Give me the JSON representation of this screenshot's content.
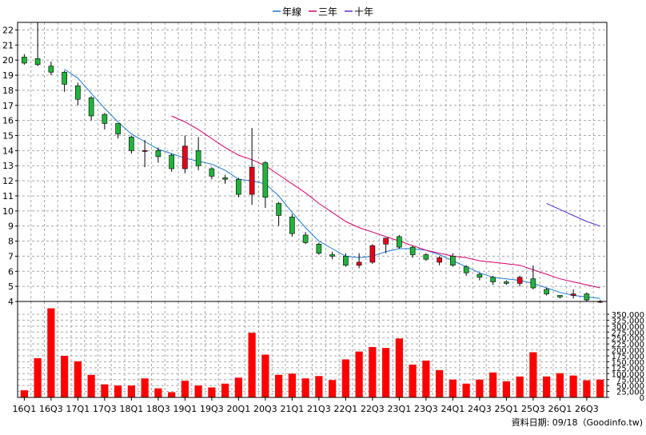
{
  "chart_data": {
    "type": "candlestick",
    "colors": {
      "up": "#e8001c",
      "down": "#21b33d",
      "volume": "#ff0000",
      "line_year": "#1c7ad4",
      "line_three": "#d6006b",
      "line_ten": "#5a2ad6",
      "grid": "#a8a8a8"
    },
    "legend": [
      {
        "key": "year",
        "label": "年線",
        "color": "#1c7ad4"
      },
      {
        "key": "three",
        "label": "三年",
        "color": "#d6006b"
      },
      {
        "key": "ten",
        "label": "十年",
        "color": "#5a2ad6"
      }
    ],
    "price_ylim": [
      4,
      22.5
    ],
    "price_yticks": [
      4,
      5,
      6,
      7,
      8,
      9,
      10,
      11,
      12,
      13,
      14,
      15,
      16,
      17,
      18,
      19,
      20,
      21,
      22
    ],
    "volume_ylim": [
      0,
      350000
    ],
    "volume_yticks": [
      0,
      25000,
      50000,
      75000,
      100000,
      125000,
      150000,
      175000,
      200000,
      225000,
      250000,
      275000,
      300000,
      325000,
      350000
    ],
    "volume_ytick_labels": [
      "0",
      "25,000",
      "50,000",
      "75,000",
      "100,000",
      "125,000",
      "150,000",
      "175,000",
      "200,000",
      "225,000",
      "250,000",
      "275,000",
      "300,000",
      "325,000",
      "350,000"
    ],
    "x_tick_labels": [
      {
        "i": 0,
        "label": "16Q1"
      },
      {
        "i": 2,
        "label": "16Q3"
      },
      {
        "i": 4,
        "label": "17Q1"
      },
      {
        "i": 6,
        "label": "17Q3"
      },
      {
        "i": 8,
        "label": "18Q1"
      },
      {
        "i": 10,
        "label": "18Q3"
      },
      {
        "i": 12,
        "label": "19Q1"
      },
      {
        "i": 14,
        "label": "19Q3"
      },
      {
        "i": 16,
        "label": "20Q1"
      },
      {
        "i": 18,
        "label": "20Q3"
      },
      {
        "i": 20,
        "label": "21Q1"
      },
      {
        "i": 22,
        "label": "21Q3"
      },
      {
        "i": 24,
        "label": "22Q1"
      },
      {
        "i": 26,
        "label": "22Q3"
      },
      {
        "i": 28,
        "label": "23Q1"
      },
      {
        "i": 30,
        "label": "23Q3"
      },
      {
        "i": 32,
        "label": "24Q1"
      },
      {
        "i": 34,
        "label": "24Q3"
      },
      {
        "i": 36,
        "label": "25Q1"
      },
      {
        "i": 38,
        "label": "25Q3"
      },
      {
        "i": 40,
        "label": "26Q1"
      },
      {
        "i": 42,
        "label": "26Q3"
      }
    ],
    "candles": [
      {
        "o": 20.2,
        "h": 20.4,
        "l": 19.7,
        "c": 19.8
      },
      {
        "o": 20.1,
        "h": 22.5,
        "l": 19.6,
        "c": 19.7
      },
      {
        "o": 19.6,
        "h": 19.9,
        "l": 19.0,
        "c": 19.2
      },
      {
        "o": 19.2,
        "h": 19.3,
        "l": 17.9,
        "c": 18.4
      },
      {
        "o": 18.3,
        "h": 18.5,
        "l": 17.0,
        "c": 17.4
      },
      {
        "o": 17.5,
        "h": 17.6,
        "l": 16.0,
        "c": 16.3
      },
      {
        "o": 16.4,
        "h": 16.5,
        "l": 15.4,
        "c": 15.8
      },
      {
        "o": 15.8,
        "h": 15.8,
        "l": 14.8,
        "c": 15.1
      },
      {
        "o": 14.9,
        "h": 15.0,
        "l": 13.8,
        "c": 14.0
      },
      {
        "o": 14.0,
        "h": 14.7,
        "l": 12.9,
        "c": 14.0
      },
      {
        "o": 14.0,
        "h": 14.2,
        "l": 13.2,
        "c": 13.6
      },
      {
        "o": 13.7,
        "h": 13.8,
        "l": 12.6,
        "c": 12.8
      },
      {
        "o": 12.8,
        "h": 15.0,
        "l": 12.5,
        "c": 14.3
      },
      {
        "o": 14.0,
        "h": 14.9,
        "l": 12.7,
        "c": 13.0
      },
      {
        "o": 12.8,
        "h": 12.9,
        "l": 12.1,
        "c": 12.3
      },
      {
        "o": 12.2,
        "h": 12.4,
        "l": 11.8,
        "c": 12.1
      },
      {
        "o": 12.1,
        "h": 12.2,
        "l": 10.9,
        "c": 11.1
      },
      {
        "o": 11.1,
        "h": 15.5,
        "l": 10.4,
        "c": 12.9
      },
      {
        "o": 13.2,
        "h": 13.3,
        "l": 10.2,
        "c": 10.9
      },
      {
        "o": 10.5,
        "h": 10.6,
        "l": 9.0,
        "c": 9.7
      },
      {
        "o": 9.6,
        "h": 9.8,
        "l": 8.3,
        "c": 8.5
      },
      {
        "o": 8.4,
        "h": 8.6,
        "l": 7.8,
        "c": 7.9
      },
      {
        "o": 7.8,
        "h": 7.9,
        "l": 7.1,
        "c": 7.2
      },
      {
        "o": 7.1,
        "h": 7.3,
        "l": 6.8,
        "c": 7.0
      },
      {
        "o": 7.0,
        "h": 7.2,
        "l": 6.3,
        "c": 6.4
      },
      {
        "o": 6.4,
        "h": 7.2,
        "l": 6.2,
        "c": 6.6
      },
      {
        "o": 6.6,
        "h": 7.8,
        "l": 6.5,
        "c": 7.7
      },
      {
        "o": 7.8,
        "h": 8.2,
        "l": 7.2,
        "c": 8.2
      },
      {
        "o": 8.3,
        "h": 8.4,
        "l": 7.5,
        "c": 7.6
      },
      {
        "o": 7.6,
        "h": 7.7,
        "l": 6.9,
        "c": 7.1
      },
      {
        "o": 7.1,
        "h": 7.2,
        "l": 6.7,
        "c": 6.8
      },
      {
        "o": 6.6,
        "h": 7.0,
        "l": 6.4,
        "c": 6.9
      },
      {
        "o": 7.0,
        "h": 7.2,
        "l": 6.3,
        "c": 6.4
      },
      {
        "o": 6.3,
        "h": 6.4,
        "l": 5.7,
        "c": 5.9
      },
      {
        "o": 5.8,
        "h": 5.9,
        "l": 5.4,
        "c": 5.6
      },
      {
        "o": 5.6,
        "h": 5.7,
        "l": 5.1,
        "c": 5.3
      },
      {
        "o": 5.3,
        "h": 5.4,
        "l": 5.1,
        "c": 5.2
      },
      {
        "o": 5.2,
        "h": 5.7,
        "l": 5.0,
        "c": 5.6
      },
      {
        "o": 5.5,
        "h": 6.4,
        "l": 4.8,
        "c": 4.9
      },
      {
        "o": 4.8,
        "h": 4.9,
        "l": 4.4,
        "c": 4.5
      },
      {
        "o": 4.4,
        "h": 4.4,
        "l": 4.2,
        "c": 4.3
      },
      {
        "o": 4.4,
        "h": 4.8,
        "l": 4.2,
        "c": 4.5
      },
      {
        "o": 4.5,
        "h": 4.6,
        "l": 4.0,
        "c": 4.1
      },
      {
        "o": 4.0,
        "h": 4.1,
        "l": 3.9,
        "c": 4.0
      }
    ],
    "volumes": [
      30000,
      165000,
      375000,
      175000,
      152000,
      95000,
      55000,
      50000,
      50000,
      80000,
      38000,
      22000,
      70000,
      50000,
      42000,
      58000,
      83000,
      272000,
      180000,
      95000,
      100000,
      80000,
      90000,
      73000,
      160000,
      193000,
      212000,
      208000,
      248000,
      138000,
      155000,
      115000,
      75000,
      58000,
      75000,
      105000,
      68000,
      88000,
      190000,
      88000,
      102000,
      92000,
      72000,
      75000
    ],
    "line_year": [
      {
        "i": 3,
        "v": 19.4
      },
      {
        "i": 4,
        "v": 18.8
      },
      {
        "i": 5,
        "v": 17.8
      },
      {
        "i": 6,
        "v": 16.8
      },
      {
        "i": 7,
        "v": 15.9
      },
      {
        "i": 8,
        "v": 15.1
      },
      {
        "i": 9,
        "v": 14.6
      },
      {
        "i": 10,
        "v": 14.1
      },
      {
        "i": 11,
        "v": 13.8
      },
      {
        "i": 12,
        "v": 13.5
      },
      {
        "i": 13,
        "v": 13.3
      },
      {
        "i": 14,
        "v": 13.1
      },
      {
        "i": 15,
        "v": 12.7
      },
      {
        "i": 16,
        "v": 12.1
      },
      {
        "i": 17,
        "v": 12.0
      },
      {
        "i": 18,
        "v": 11.8
      },
      {
        "i": 19,
        "v": 11.0
      },
      {
        "i": 20,
        "v": 9.9
      },
      {
        "i": 21,
        "v": 8.9
      },
      {
        "i": 22,
        "v": 8.0
      },
      {
        "i": 23,
        "v": 7.5
      },
      {
        "i": 24,
        "v": 7.0
      },
      {
        "i": 25,
        "v": 6.9
      },
      {
        "i": 26,
        "v": 7.0
      },
      {
        "i": 27,
        "v": 7.3
      },
      {
        "i": 28,
        "v": 7.5
      },
      {
        "i": 29,
        "v": 7.5
      },
      {
        "i": 30,
        "v": 7.4
      },
      {
        "i": 31,
        "v": 7.1
      },
      {
        "i": 32,
        "v": 6.7
      },
      {
        "i": 33,
        "v": 6.3
      },
      {
        "i": 34,
        "v": 5.9
      },
      {
        "i": 35,
        "v": 5.6
      },
      {
        "i": 36,
        "v": 5.5
      },
      {
        "i": 37,
        "v": 5.4
      },
      {
        "i": 38,
        "v": 5.2
      },
      {
        "i": 39,
        "v": 4.9
      },
      {
        "i": 40,
        "v": 4.6
      },
      {
        "i": 41,
        "v": 4.4
      },
      {
        "i": 42,
        "v": 4.3
      },
      {
        "i": 43,
        "v": 4.2
      }
    ],
    "line_three": [
      {
        "i": 11,
        "v": 16.3
      },
      {
        "i": 12,
        "v": 15.9
      },
      {
        "i": 13,
        "v": 15.4
      },
      {
        "i": 14,
        "v": 14.8
      },
      {
        "i": 15,
        "v": 14.2
      },
      {
        "i": 16,
        "v": 13.7
      },
      {
        "i": 17,
        "v": 13.4
      },
      {
        "i": 18,
        "v": 13.0
      },
      {
        "i": 19,
        "v": 12.4
      },
      {
        "i": 20,
        "v": 11.8
      },
      {
        "i": 21,
        "v": 11.2
      },
      {
        "i": 22,
        "v": 10.5
      },
      {
        "i": 23,
        "v": 9.9
      },
      {
        "i": 24,
        "v": 9.3
      },
      {
        "i": 25,
        "v": 8.9
      },
      {
        "i": 26,
        "v": 8.6
      },
      {
        "i": 27,
        "v": 8.3
      },
      {
        "i": 28,
        "v": 8.0
      },
      {
        "i": 29,
        "v": 7.7
      },
      {
        "i": 30,
        "v": 7.4
      },
      {
        "i": 31,
        "v": 7.2
      },
      {
        "i": 32,
        "v": 7.0
      },
      {
        "i": 33,
        "v": 6.9
      },
      {
        "i": 34,
        "v": 6.7
      },
      {
        "i": 35,
        "v": 6.6
      },
      {
        "i": 36,
        "v": 6.5
      },
      {
        "i": 37,
        "v": 6.4
      },
      {
        "i": 38,
        "v": 6.1
      },
      {
        "i": 39,
        "v": 5.8
      },
      {
        "i": 40,
        "v": 5.5
      },
      {
        "i": 41,
        "v": 5.3
      },
      {
        "i": 42,
        "v": 5.1
      },
      {
        "i": 43,
        "v": 4.9
      }
    ],
    "line_ten": [
      {
        "i": 39,
        "v": 10.5
      },
      {
        "i": 40,
        "v": 10.1
      },
      {
        "i": 41,
        "v": 9.7
      },
      {
        "i": 42,
        "v": 9.3
      },
      {
        "i": 43,
        "v": 9.0
      }
    ],
    "source_note": "資料日期: 09/18（Goodinfo.tw)"
  }
}
